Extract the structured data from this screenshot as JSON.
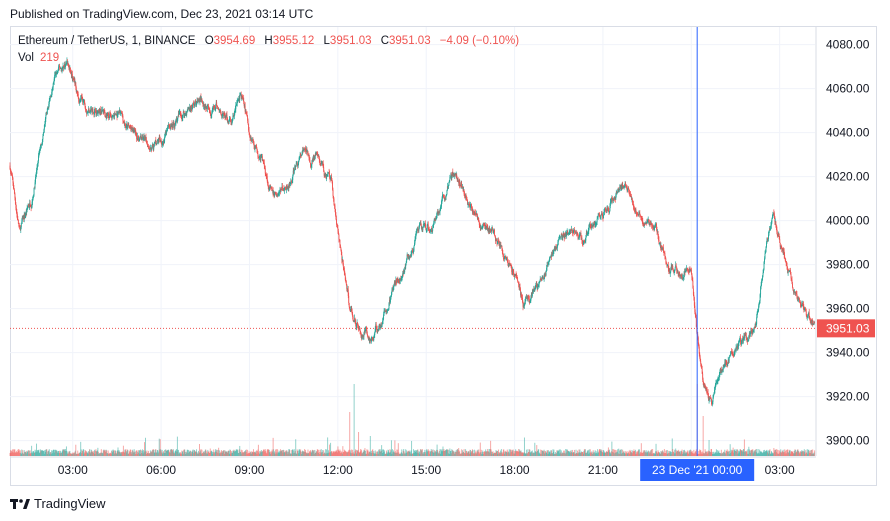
{
  "published": "Published on TradingView.com, Dec 23, 2021 03:14 UTC",
  "legend": {
    "symbol": "Ethereum / TetherUS, 1, BINANCE",
    "o_label": "O",
    "o": "3954.69",
    "h_label": "H",
    "h": "3955.12",
    "l_label": "L",
    "l": "3951.03",
    "c_label": "C",
    "c": "3951.03",
    "change": "−4.09 (−0.10%)",
    "vol_label": "Vol",
    "vol": "219"
  },
  "footer": {
    "brand": "TradingView",
    "logo_icon": "tradingview-logo-icon"
  },
  "colors": {
    "up": "#26a69a",
    "down": "#ef5350",
    "crosshair": "#2962ff",
    "price_tag": "#ef5350",
    "grid": "#f0f3fa"
  },
  "chart_data": {
    "type": "candlestick",
    "title": "Ethereum / TetherUS, 1, BINANCE",
    "ylim": [
      3893,
      4088
    ],
    "y_ticks": [
      "4080.00",
      "4060.00",
      "4040.00",
      "4020.00",
      "4000.00",
      "3980.00",
      "3960.00",
      "3940.00",
      "3920.00",
      "3900.00"
    ],
    "y_tick_values": [
      4080,
      4060,
      4040,
      4020,
      4000,
      3980,
      3960,
      3940,
      3920,
      3900
    ],
    "x_ticks": [
      "03:00",
      "06:00",
      "09:00",
      "12:00",
      "15:00",
      "18:00",
      "21:00",
      "23 Dec '21   00:00",
      "03:00"
    ],
    "x_tick_hours": [
      3,
      6,
      9,
      12,
      15,
      18,
      21,
      24,
      27
    ],
    "x_range_hours": [
      0.87,
      28.2
    ],
    "last_price": "3951.03",
    "last_price_value": 3951.03,
    "crosshair_hour": 24.2,
    "crosshair_label": "23 Dec '21   00:00",
    "grid": true,
    "price_path": [
      [
        0.87,
        4025
      ],
      [
        1.2,
        3995
      ],
      [
        1.6,
        4010
      ],
      [
        2.0,
        4040
      ],
      [
        2.4,
        4065
      ],
      [
        2.8,
        4072
      ],
      [
        3.2,
        4055
      ],
      [
        3.6,
        4052
      ],
      [
        4.0,
        4050
      ],
      [
        4.5,
        4048
      ],
      [
        5.0,
        4040
      ],
      [
        5.5,
        4035
      ],
      [
        6.0,
        4037
      ],
      [
        6.5,
        4045
      ],
      [
        7.0,
        4052
      ],
      [
        7.5,
        4055
      ],
      [
        8.0,
        4050
      ],
      [
        8.4,
        4045
      ],
      [
        8.7,
        4058
      ],
      [
        9.0,
        4040
      ],
      [
        9.4,
        4030
      ],
      [
        9.8,
        4010
      ],
      [
        10.2,
        4015
      ],
      [
        10.8,
        4030
      ],
      [
        11.3,
        4028
      ],
      [
        11.8,
        4015
      ],
      [
        12.1,
        3985
      ],
      [
        12.4,
        3960
      ],
      [
        12.8,
        3950
      ],
      [
        13.2,
        3948
      ],
      [
        13.6,
        3958
      ],
      [
        14.0,
        3972
      ],
      [
        14.4,
        3985
      ],
      [
        14.8,
        3994
      ],
      [
        15.2,
        3998
      ],
      [
        15.6,
        4012
      ],
      [
        16.0,
        4022
      ],
      [
        16.4,
        4010
      ],
      [
        16.8,
        4000
      ],
      [
        17.2,
        3995
      ],
      [
        17.6,
        3985
      ],
      [
        18.0,
        3975
      ],
      [
        18.3,
        3960
      ],
      [
        18.8,
        3970
      ],
      [
        19.3,
        3985
      ],
      [
        19.8,
        3995
      ],
      [
        20.3,
        3990
      ],
      [
        20.8,
        4000
      ],
      [
        21.3,
        4010
      ],
      [
        21.8,
        4018
      ],
      [
        22.3,
        4000
      ],
      [
        22.8,
        3995
      ],
      [
        23.2,
        3980
      ],
      [
        23.6,
        3976
      ],
      [
        24.0,
        3978
      ],
      [
        24.2,
        3948
      ],
      [
        24.4,
        3928
      ],
      [
        24.7,
        3915
      ],
      [
        25.0,
        3932
      ],
      [
        25.4,
        3940
      ],
      [
        25.8,
        3946
      ],
      [
        26.2,
        3952
      ],
      [
        26.5,
        3985
      ],
      [
        26.8,
        4000
      ],
      [
        27.2,
        3985
      ],
      [
        27.6,
        3965
      ],
      [
        28.2,
        3951
      ]
    ],
    "volume_spikes": [
      [
        12.0,
        0.12
      ],
      [
        12.4,
        0.55
      ],
      [
        12.55,
        0.9
      ],
      [
        12.7,
        0.3
      ],
      [
        13.1,
        0.25
      ],
      [
        13.5,
        0.08
      ],
      [
        16.1,
        0.1
      ],
      [
        21.3,
        0.18
      ],
      [
        22.3,
        0.16
      ],
      [
        24.2,
        0.9
      ],
      [
        24.4,
        0.5
      ],
      [
        24.6,
        0.2
      ],
      [
        26.8,
        0.1
      ]
    ]
  }
}
